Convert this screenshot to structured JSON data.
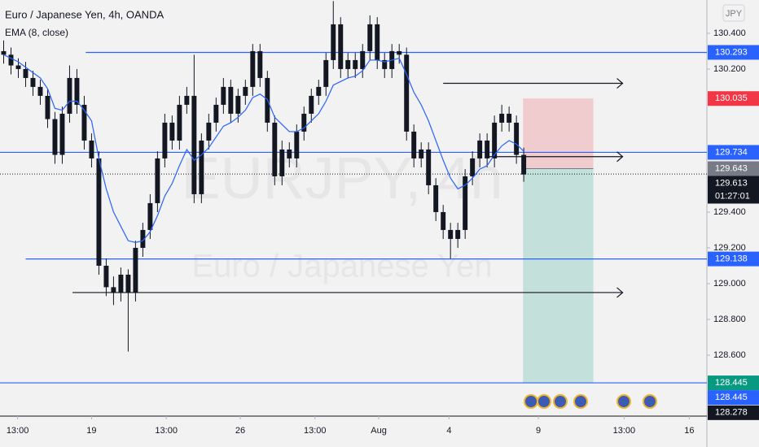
{
  "chart_data": {
    "type": "candlestick",
    "title": "Euro / Japanese Yen, 4h, OANDA",
    "indicator_label": "EMA (8, close)",
    "currency": "JPY",
    "watermark": "EURJPY, 4h",
    "watermark_subtitle": "Euro / Japanese Yen",
    "countdown": "01:27:01",
    "candle_color": "#131722",
    "ema_color": "#2962ff",
    "xlim": [
      -0.5,
      96
    ],
    "ylim": [
      128.259,
      130.586
    ],
    "xticks": [
      {
        "value": 1.9,
        "label": "13:00"
      },
      {
        "value": 12,
        "label": "19"
      },
      {
        "value": 22.2,
        "label": "13:00"
      },
      {
        "value": 32.3,
        "label": "26"
      },
      {
        "value": 42.5,
        "label": "13:00"
      },
      {
        "value": 51.2,
        "label": "Aug"
      },
      {
        "value": 60.8,
        "label": "4"
      },
      {
        "value": 73,
        "label": "9"
      },
      {
        "value": 84.7,
        "label": "13:00"
      },
      {
        "value": 93.6,
        "label": "16"
      }
    ],
    "yticks": [
      {
        "value": 130.4,
        "label": "130.400"
      },
      {
        "value": 130.2,
        "label": "130.200"
      },
      {
        "value": 129.4,
        "label": "129.400"
      },
      {
        "value": 129.2,
        "label": "129.200"
      },
      {
        "value": 129.0,
        "label": "129.000"
      },
      {
        "value": 128.8,
        "label": "128.800"
      },
      {
        "value": 128.6,
        "label": "128.600"
      }
    ],
    "open": [
      130.3,
      130.28,
      130.22,
      130.2,
      130.15,
      130.1,
      130.05,
      129.92,
      129.72,
      129.95,
      130.15,
      130.0,
      129.8,
      129.7,
      129.1,
      128.98,
      128.95,
      129.05,
      128.95,
      129.2,
      129.3,
      129.45,
      129.7,
      129.9,
      129.8,
      130.0,
      130.05,
      129.5,
      129.8,
      129.9,
      130.0,
      130.1,
      129.95,
      130.05,
      130.1,
      130.3,
      130.15,
      129.9,
      129.6,
      129.75,
      129.7,
      129.85,
      129.95,
      130.05,
      130.1,
      130.25,
      130.45,
      130.2,
      130.25,
      130.2,
      130.3,
      130.45,
      130.25,
      130.2,
      130.3,
      130.28,
      129.85,
      129.7,
      129.75,
      129.55,
      129.4,
      129.3,
      129.25,
      129.3,
      129.6,
      129.7,
      129.8,
      129.7,
      129.9,
      129.95,
      129.9,
      129.72
    ],
    "high": [
      130.36,
      130.32,
      130.26,
      130.24,
      130.19,
      130.14,
      130.09,
      129.96,
      129.99,
      130.22,
      130.2,
      130.05,
      129.84,
      129.74,
      129.14,
      129.04,
      129.09,
      129.08,
      129.24,
      129.34,
      129.5,
      129.74,
      129.95,
      129.94,
      130.05,
      130.1,
      130.28,
      129.84,
      129.95,
      130.04,
      130.15,
      130.14,
      130.09,
      130.14,
      130.34,
      130.34,
      130.19,
      129.94,
      129.8,
      129.79,
      129.89,
      129.99,
      130.09,
      130.14,
      130.29,
      130.58,
      130.49,
      130.29,
      130.29,
      130.34,
      130.5,
      130.49,
      130.29,
      130.34,
      130.34,
      130.32,
      129.89,
      129.79,
      129.79,
      129.59,
      129.44,
      129.34,
      129.34,
      129.64,
      129.74,
      129.84,
      129.84,
      129.94,
      130.0,
      129.99,
      129.94,
      129.76
    ],
    "low": [
      130.23,
      130.17,
      130.15,
      130.1,
      130.05,
      130.0,
      129.87,
      129.67,
      129.67,
      129.9,
      129.95,
      129.75,
      129.65,
      129.05,
      128.93,
      128.88,
      128.9,
      128.62,
      128.9,
      129.15,
      129.25,
      129.4,
      129.65,
      129.75,
      129.75,
      129.95,
      129.45,
      129.45,
      129.75,
      129.85,
      129.95,
      129.9,
      129.9,
      130.0,
      130.05,
      130.1,
      129.85,
      129.55,
      129.55,
      129.65,
      129.65,
      129.8,
      129.9,
      130.0,
      130.05,
      130.2,
      130.15,
      130.15,
      130.15,
      130.15,
      130.25,
      130.2,
      130.15,
      130.15,
      130.23,
      129.8,
      129.65,
      129.65,
      129.5,
      129.35,
      129.25,
      129.14,
      129.2,
      129.25,
      129.55,
      129.65,
      129.65,
      129.65,
      129.85,
      129.85,
      129.67,
      129.57
    ],
    "close": [
      130.28,
      130.22,
      130.2,
      130.15,
      130.1,
      130.05,
      129.92,
      129.72,
      129.95,
      130.15,
      130.0,
      129.8,
      129.7,
      129.1,
      128.98,
      128.95,
      129.05,
      128.95,
      129.2,
      129.3,
      129.45,
      129.7,
      129.9,
      129.8,
      130.0,
      130.05,
      129.5,
      129.8,
      129.9,
      130.0,
      130.1,
      129.95,
      130.05,
      130.1,
      130.3,
      130.15,
      129.9,
      129.6,
      129.75,
      129.7,
      129.85,
      129.95,
      130.05,
      130.1,
      130.25,
      130.45,
      130.2,
      130.25,
      130.2,
      130.3,
      130.45,
      130.25,
      130.2,
      130.3,
      130.28,
      129.85,
      129.7,
      129.75,
      129.55,
      129.4,
      129.3,
      129.25,
      129.3,
      129.6,
      129.7,
      129.8,
      129.7,
      129.9,
      129.95,
      129.9,
      129.72,
      129.61
    ],
    "ema": [
      130.28,
      130.26,
      130.24,
      130.21,
      130.18,
      130.15,
      130.09,
      129.98,
      129.97,
      130.02,
      130.02,
      129.97,
      129.91,
      129.7,
      129.53,
      129.4,
      129.32,
      129.24,
      129.23,
      129.24,
      129.29,
      129.38,
      129.49,
      129.56,
      129.66,
      129.75,
      129.69,
      129.72,
      129.76,
      129.82,
      129.88,
      129.9,
      129.93,
      129.97,
      130.04,
      130.06,
      130.03,
      129.93,
      129.89,
      129.85,
      129.85,
      129.87,
      129.91,
      129.95,
      130.02,
      130.11,
      130.13,
      130.15,
      130.16,
      130.19,
      130.25,
      130.25,
      130.24,
      130.25,
      130.26,
      130.17,
      130.07,
      130.0,
      129.91,
      129.8,
      129.69,
      129.59,
      129.53,
      129.55,
      129.59,
      129.64,
      129.66,
      129.72,
      129.77,
      129.8,
      129.78,
      129.74
    ],
    "hlines": [
      {
        "value": 130.293,
        "from": 11.2,
        "color": "#2962ff"
      },
      {
        "value": 129.734,
        "from": -0.5,
        "color": "#2962ff"
      },
      {
        "value": 129.138,
        "from": 3,
        "color": "#2962ff"
      },
      {
        "value": 128.445,
        "from": -0.5,
        "color": "#2962ff"
      }
    ],
    "arrows": [
      {
        "value": 130.12,
        "from": 60,
        "to": 84.5
      },
      {
        "value": 129.71,
        "from": 66,
        "to": 84.5
      },
      {
        "value": 128.95,
        "from": 9.4,
        "to": 84.5
      }
    ],
    "position": {
      "from": 70.9,
      "to": 80.5,
      "stop": 130.035,
      "entry": 129.643,
      "target": 128.445
    },
    "last_price": 129.613,
    "price_tags": [
      {
        "value": 130.293,
        "label": "130.293",
        "color": "#2962ff"
      },
      {
        "value": 130.035,
        "label": "130.035",
        "color": "#f23645"
      },
      {
        "value": 129.734,
        "label": "129.734",
        "color": "#2962ff"
      },
      {
        "value": 129.643,
        "label": "129.643",
        "color": "#787b86"
      },
      {
        "value": 129.613,
        "label": "129.613",
        "color": "#131722"
      },
      {
        "value": 129.138,
        "label": "129.138",
        "color": "#2962ff"
      },
      {
        "value": 128.445,
        "label": "128.445",
        "color": "#089981"
      },
      {
        "value": 128.445,
        "label": "128.445",
        "color": "#2962ff"
      },
      {
        "value": 128.278,
        "label": "128.278",
        "color": "#131722"
      }
    ]
  }
}
